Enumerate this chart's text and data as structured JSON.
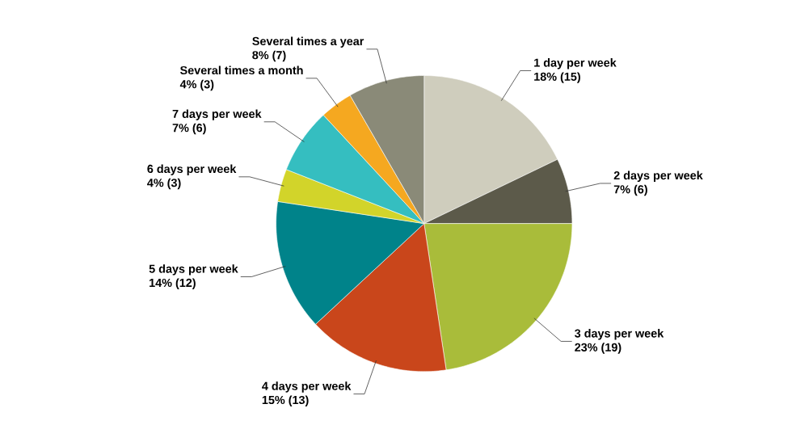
{
  "chart_data": {
    "type": "pie",
    "categories": [
      "1 day per week",
      "2 days per week",
      "3 days per week",
      "4 days per week",
      "5 days per week",
      "6 days per week",
      "7 days per week",
      "Several times a month",
      "Several times a year"
    ],
    "values": [
      15,
      6,
      19,
      13,
      12,
      3,
      6,
      3,
      7
    ],
    "value_labels": [
      "18% (15)",
      "7% (6)",
      "23% (19)",
      "15% (13)",
      "14% (12)",
      "4% (3)",
      "7% (6)",
      "4% (3)",
      "8% (7)"
    ],
    "colors": [
      "#cfcdbd",
      "#5c5a4a",
      "#a9bc3a",
      "#c9461b",
      "#00838a",
      "#d2d42a",
      "#35bec0",
      "#f5a820",
      "#8a8a78"
    ]
  }
}
